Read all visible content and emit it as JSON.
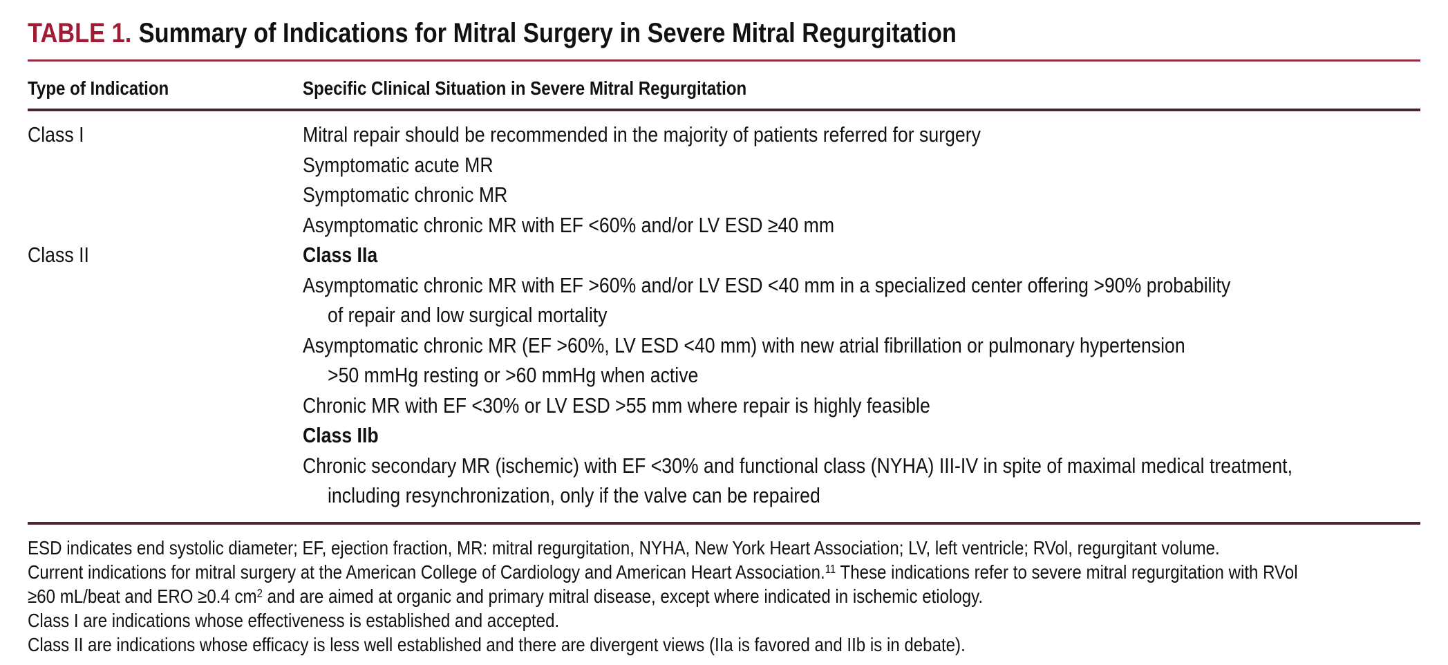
{
  "colors": {
    "accent_crimson": "#9F1C33",
    "rule_thin": "#8E2C42",
    "rule_thick": "#4B2432",
    "text": "#111111",
    "background": "#FFFFFF"
  },
  "table": {
    "label": "TABLE 1.",
    "title": "Summary of Indications for Mitral Surgery in Severe Mitral Regurgitation",
    "headers": {
      "type": "Type of Indication",
      "situation": "Specific Clinical Situation in Severe Mitral Regurgitation"
    },
    "lines": [
      {
        "class_label": "Class I",
        "text": "Mitral repair should be recommended in the majority of patients referred for surgery"
      },
      {
        "class_label": "",
        "text": "Symptomatic acute MR"
      },
      {
        "class_label": "",
        "text": "Symptomatic chronic MR"
      },
      {
        "class_label": "",
        "text": "Asymptomatic chronic MR with EF <60% and/or LV ESD ≥40 mm"
      },
      {
        "class_label": "Class II",
        "text": "Class IIa"
      },
      {
        "class_label": "",
        "text": "Asymptomatic chronic MR with EF >60% and/or LV ESD <40 mm in a specialized center offering >90% probability"
      },
      {
        "class_label": "",
        "text": "of repair and low surgical mortality"
      },
      {
        "class_label": "",
        "text": "Asymptomatic chronic MR (EF >60%, LV ESD <40 mm) with new atrial fibrillation or pulmonary hypertension"
      },
      {
        "class_label": "",
        "text": ">50 mmHg resting or >60 mmHg when active"
      },
      {
        "class_label": "",
        "text": "Chronic MR with EF <30% or LV ESD >55 mm where repair is highly feasible"
      },
      {
        "class_label": "",
        "text": "Class IIb"
      },
      {
        "class_label": "",
        "text": "Chronic secondary MR (ischemic) with EF <30% and functional class (NYHA) III-IV in spite of maximal medical treatment,"
      },
      {
        "class_label": "",
        "text": "including resynchronization, only if the valve can be repaired"
      }
    ],
    "footnotes": [
      {
        "pre": "ESD indicates end systolic diameter; EF, ejection fraction, MR: mitral regurgitation, NYHA, New York Heart Association; LV, left ventricle; RVol, regurgitant volume.",
        "sup": "",
        "post": ""
      },
      {
        "pre": "Current indications for mitral surgery at the American College of Cardiology and American Heart Association.",
        "sup": "11",
        "post": " These indications refer to severe mitral regurgitation with RVol"
      },
      {
        "pre": "≥60 mL/beat and ERO ≥0.4 cm",
        "sup": "2",
        "post": " and are aimed at organic and primary mitral disease, except where indicated in ischemic etiology."
      },
      {
        "pre": "Class I are indications whose effectiveness is established and accepted.",
        "sup": "",
        "post": ""
      },
      {
        "pre": "Class II are indications whose efficacy is less well established and there are divergent views (IIa is favored and IIb is in debate).",
        "sup": "",
        "post": ""
      }
    ]
  }
}
